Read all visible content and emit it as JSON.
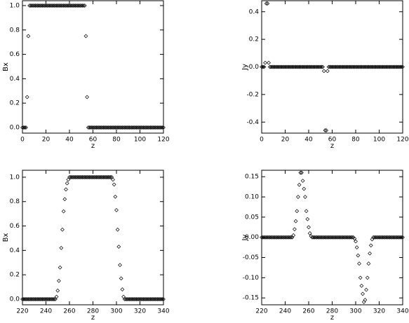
{
  "chart_data": [
    {
      "type": "scatter",
      "x_label": "z",
      "y_label": "Bx",
      "x": [
        0,
        1,
        2,
        3,
        4,
        5,
        6,
        7,
        8,
        9,
        10,
        11,
        12,
        13,
        14,
        15,
        16,
        17,
        18,
        19,
        20,
        21,
        22,
        23,
        24,
        25,
        26,
        27,
        28,
        29,
        30,
        31,
        32,
        33,
        34,
        35,
        36,
        37,
        38,
        39,
        40,
        41,
        42,
        43,
        44,
        45,
        46,
        47,
        48,
        49,
        50,
        51,
        52,
        53,
        54,
        55,
        56,
        57,
        58,
        59,
        60,
        61,
        62,
        63,
        64,
        65,
        66,
        67,
        68,
        69,
        70,
        71,
        72,
        73,
        74,
        75,
        76,
        77,
        78,
        79,
        80,
        81,
        82,
        83,
        84,
        85,
        86,
        87,
        88,
        89,
        90,
        91,
        92,
        93,
        94,
        95,
        96,
        97,
        98,
        99,
        100,
        101,
        102,
        103,
        104,
        105,
        106,
        107,
        108,
        109,
        110,
        111,
        112,
        113,
        114,
        115,
        116,
        117,
        118,
        119,
        120
      ],
      "values": [
        0,
        0,
        0,
        0,
        0.25,
        0.75,
        1,
        1,
        1,
        1,
        1,
        1,
        1,
        1,
        1,
        1,
        1,
        1,
        1,
        1,
        1,
        1,
        1,
        1,
        1,
        1,
        1,
        1,
        1,
        1,
        1,
        1,
        1,
        1,
        1,
        1,
        1,
        1,
        1,
        1,
        1,
        1,
        1,
        1,
        1,
        1,
        1,
        1,
        1,
        1,
        1,
        1,
        1,
        1,
        0.75,
        0.25,
        0,
        0,
        0,
        0,
        0,
        0,
        0,
        0,
        0,
        0,
        0,
        0,
        0,
        0,
        0,
        0,
        0,
        0,
        0,
        0,
        0,
        0,
        0,
        0,
        0,
        0,
        0,
        0,
        0,
        0,
        0,
        0,
        0,
        0,
        0,
        0,
        0,
        0,
        0,
        0,
        0,
        0,
        0,
        0,
        0,
        0,
        0,
        0,
        0,
        0,
        0,
        0,
        0,
        0,
        0,
        0,
        0,
        0,
        0,
        0,
        0,
        0,
        0,
        0,
        0
      ],
      "color": "#000000",
      "xlim": [
        0,
        120
      ],
      "xticks": [
        0,
        20,
        40,
        60,
        80,
        100,
        120
      ],
      "ylim": [
        -0.046,
        1.04
      ],
      "yticks": [
        {
          "value": 0,
          "label": "0.0"
        },
        0.2,
        0.4,
        0.6,
        0.8,
        {
          "value": 1,
          "label": "1.0"
        }
      ]
    },
    {
      "type": "scatter",
      "x_label": "z",
      "y_label": "Jy",
      "x": [
        0,
        1,
        2,
        3,
        4,
        5,
        6,
        7,
        8,
        9,
        10,
        11,
        12,
        13,
        14,
        15,
        16,
        17,
        18,
        19,
        20,
        21,
        22,
        23,
        24,
        25,
        26,
        27,
        28,
        29,
        30,
        31,
        32,
        33,
        34,
        35,
        36,
        37,
        38,
        39,
        40,
        41,
        42,
        43,
        44,
        45,
        46,
        47,
        48,
        49,
        50,
        51,
        52,
        53,
        54,
        55,
        56,
        57,
        58,
        59,
        60,
        61,
        62,
        63,
        64,
        65,
        66,
        67,
        68,
        69,
        70,
        71,
        72,
        73,
        74,
        75,
        76,
        77,
        78,
        79,
        80,
        81,
        82,
        83,
        84,
        85,
        86,
        87,
        88,
        89,
        90,
        91,
        92,
        93,
        94,
        95,
        96,
        97,
        98,
        99,
        100,
        101,
        102,
        103,
        104,
        105,
        106,
        107,
        108,
        109,
        110,
        111,
        112,
        113,
        114,
        115,
        116,
        117,
        118,
        119,
        120
      ],
      "values": [
        0,
        0,
        0,
        0.03,
        0.46,
        0.46,
        0.03,
        0,
        0,
        0,
        0,
        0,
        0,
        0,
        0,
        0,
        0,
        0,
        0,
        0,
        0,
        0,
        0,
        0,
        0,
        0,
        0,
        0,
        0,
        0,
        0,
        0,
        0,
        0,
        0,
        0,
        0,
        0,
        0,
        0,
        0,
        0,
        0,
        0,
        0,
        0,
        0,
        0,
        0,
        0,
        0,
        0,
        0,
        -0.03,
        -0.46,
        -0.46,
        -0.03,
        0,
        0,
        0,
        0,
        0,
        0,
        0,
        0,
        0,
        0,
        0,
        0,
        0,
        0,
        0,
        0,
        0,
        0,
        0,
        0,
        0,
        0,
        0,
        0,
        0,
        0,
        0,
        0,
        0,
        0,
        0,
        0,
        0,
        0,
        0,
        0,
        0,
        0,
        0,
        0,
        0,
        0,
        0,
        0,
        0,
        0,
        0,
        0,
        0,
        0,
        0,
        0,
        0,
        0,
        0,
        0,
        0,
        0,
        0,
        0,
        0,
        0,
        0,
        0
      ],
      "color": "#000000",
      "xlim": [
        0,
        120
      ],
      "xticks": [
        0,
        20,
        40,
        60,
        80,
        100,
        120
      ],
      "ylim": [
        -0.48,
        0.48
      ],
      "yticks": [
        -0.4,
        -0.2,
        {
          "value": 0,
          "label": "0.0"
        },
        0.2,
        0.4
      ]
    },
    {
      "type": "scatter",
      "x_label": "z",
      "y_label": "Bx",
      "x": [
        220,
        221,
        222,
        223,
        224,
        225,
        226,
        227,
        228,
        229,
        230,
        231,
        232,
        233,
        234,
        235,
        236,
        237,
        238,
        239,
        240,
        241,
        242,
        243,
        244,
        245,
        246,
        247,
        248,
        249,
        250,
        251,
        252,
        253,
        254,
        255,
        256,
        257,
        258,
        259,
        260,
        261,
        262,
        263,
        264,
        265,
        266,
        267,
        268,
        269,
        270,
        271,
        272,
        273,
        274,
        275,
        276,
        277,
        278,
        279,
        280,
        281,
        282,
        283,
        284,
        285,
        286,
        287,
        288,
        289,
        290,
        291,
        292,
        293,
        294,
        295,
        296,
        297,
        298,
        299,
        300,
        301,
        302,
        303,
        304,
        305,
        306,
        307,
        308,
        309,
        310,
        311,
        312,
        313,
        314,
        315,
        316,
        317,
        318,
        319,
        320,
        321,
        322,
        323,
        324,
        325,
        326,
        327,
        328,
        329,
        330,
        331,
        332,
        333,
        334,
        335,
        336,
        337,
        338,
        339,
        340
      ],
      "values": [
        0,
        0,
        0,
        0,
        0,
        0,
        0,
        0,
        0,
        0,
        0,
        0,
        0,
        0,
        0,
        0,
        0,
        0,
        0,
        0,
        0,
        0,
        0,
        0,
        0,
        0,
        0,
        0,
        0,
        0.02,
        0.07,
        0.15,
        0.26,
        0.42,
        0.57,
        0.72,
        0.82,
        0.9,
        0.95,
        0.98,
        1,
        1,
        1,
        1,
        1,
        1,
        1,
        1,
        1,
        1,
        1,
        1,
        1,
        1,
        1,
        1,
        1,
        1,
        1,
        1,
        1,
        1,
        1,
        1,
        1,
        1,
        1,
        1,
        1,
        1,
        1,
        1,
        1,
        1,
        1,
        1,
        1,
        0.98,
        0.94,
        0.84,
        0.73,
        0.57,
        0.43,
        0.28,
        0.17,
        0.08,
        0.02,
        0,
        0,
        0,
        0,
        0,
        0,
        0,
        0,
        0,
        0,
        0,
        0,
        0,
        0,
        0,
        0,
        0,
        0,
        0,
        0,
        0,
        0,
        0,
        0,
        0,
        0,
        0,
        0,
        0,
        0,
        0,
        0,
        0,
        0
      ],
      "color": "#000000",
      "xlim": [
        220,
        340
      ],
      "xticks": [
        220,
        240,
        260,
        280,
        300,
        320,
        340
      ],
      "ylim": [
        -0.046,
        1.057
      ],
      "yticks": [
        {
          "value": 0,
          "label": "0.0"
        },
        0.2,
        0.4,
        0.6,
        0.8,
        {
          "value": 1,
          "label": "1.0"
        }
      ]
    },
    {
      "type": "scatter",
      "x_label": "z",
      "y_label": "Jy",
      "x": [
        220,
        221,
        222,
        223,
        224,
        225,
        226,
        227,
        228,
        229,
        230,
        231,
        232,
        233,
        234,
        235,
        236,
        237,
        238,
        239,
        240,
        241,
        242,
        243,
        244,
        245,
        246,
        247,
        248,
        249,
        250,
        251,
        252,
        253,
        254,
        255,
        256,
        257,
        258,
        259,
        260,
        261,
        262,
        263,
        264,
        265,
        266,
        267,
        268,
        269,
        270,
        271,
        272,
        273,
        274,
        275,
        276,
        277,
        278,
        279,
        280,
        281,
        282,
        283,
        284,
        285,
        286,
        287,
        288,
        289,
        290,
        291,
        292,
        293,
        294,
        295,
        296,
        297,
        298,
        299,
        300,
        301,
        302,
        303,
        304,
        305,
        306,
        307,
        308,
        309,
        310,
        311,
        312,
        313,
        314,
        315,
        316,
        317,
        318,
        319,
        320,
        321,
        322,
        323,
        324,
        325,
        326,
        327,
        328,
        329,
        330,
        331,
        332,
        333,
        334,
        335,
        336,
        337,
        338,
        339,
        340
      ],
      "values": [
        0,
        0,
        0,
        0,
        0,
        0,
        0,
        0,
        0,
        0,
        0,
        0,
        0,
        0,
        0,
        0,
        0,
        0,
        0,
        0,
        0,
        0,
        0,
        0,
        0,
        0,
        0,
        0.005,
        0.02,
        0.04,
        0.065,
        0.1,
        0.13,
        0.16,
        0.16,
        0.14,
        0.12,
        0.1,
        0.065,
        0.045,
        0.025,
        0.01,
        0.003,
        0,
        0,
        0,
        0,
        0,
        0,
        0,
        0,
        0,
        0,
        0,
        0,
        0,
        0,
        0,
        0,
        0,
        0,
        0,
        0,
        0,
        0,
        0,
        0,
        0,
        0,
        0,
        0,
        0,
        0,
        0,
        0,
        0,
        0,
        0,
        0,
        -0.003,
        -0.01,
        -0.025,
        -0.045,
        -0.065,
        -0.1,
        -0.12,
        -0.14,
        -0.16,
        -0.155,
        -0.13,
        -0.1,
        -0.065,
        -0.04,
        -0.02,
        -0.005,
        0,
        0,
        0,
        0,
        0,
        0,
        0,
        0,
        0,
        0,
        0,
        0,
        0,
        0,
        0,
        0,
        0,
        0,
        0,
        0,
        0,
        0,
        0,
        0,
        0,
        0
      ],
      "color": "#000000",
      "xlim": [
        220,
        340
      ],
      "xticks": [
        220,
        240,
        260,
        280,
        300,
        320,
        340
      ],
      "ylim": [
        -0.167,
        0.166
      ],
      "yticks": [
        -0.15,
        {
          "value": -0.1,
          "label": "-0.10"
        },
        -0.05,
        {
          "value": 0,
          "label": "0.00"
        },
        0.05,
        {
          "value": 0.1,
          "label": "0.10"
        },
        0.15
      ]
    }
  ]
}
